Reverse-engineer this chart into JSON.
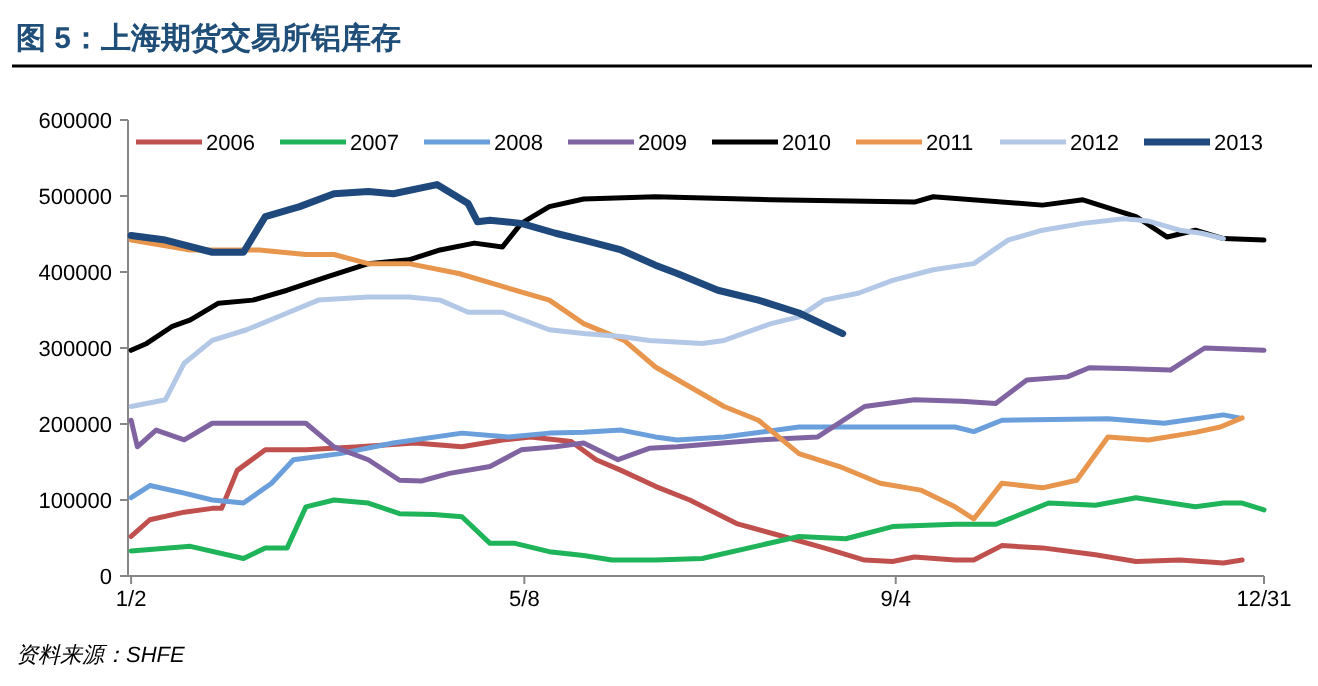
{
  "chart_data": {
    "type": "line",
    "title": "图 5：上海期货交易所铝库存",
    "annotations": [
      "资料来源：SHFE"
    ],
    "xlim": [
      "--01-01",
      "--12-31"
    ],
    "ylim": [
      0,
      600000
    ],
    "xticks": [
      {
        "value": "--01-02",
        "label": "1/2"
      },
      {
        "value": "--05-08",
        "label": "5/8"
      },
      {
        "value": "--09-04",
        "label": "9/4"
      },
      {
        "value": "--12-31",
        "label": "12/31"
      }
    ],
    "yticks": [
      0,
      100000,
      200000,
      300000,
      400000,
      500000,
      600000
    ],
    "legend": "top",
    "series": [
      {
        "name": "2006",
        "color": "#c0504d",
        "x": [
          "--01-02",
          "--01-08",
          "--01-19",
          "--01-28",
          "--01-31",
          "--02-05",
          "--02-14",
          "--02-27",
          "--03-16",
          "--04-03",
          "--04-18",
          "--05-01",
          "--05-10",
          "--05-23",
          "--05-31",
          "--06-08",
          "--06-19",
          "--06-30",
          "--07-15",
          "--07-30",
          "--08-12",
          "--08-25",
          "--09-03",
          "--09-10",
          "--09-23",
          "--09-29",
          "--10-08",
          "--10-21",
          "--11-07",
          "--11-20",
          "--12-04",
          "--12-18",
          "--12-24"
        ],
        "values": [
          52000,
          74000,
          84000,
          89000,
          89000,
          139000,
          166000,
          166000,
          170000,
          175000,
          170000,
          179000,
          183000,
          177000,
          153000,
          139000,
          118000,
          100000,
          69000,
          52000,
          37000,
          21000,
          19000,
          25000,
          21000,
          21000,
          40000,
          37000,
          28000,
          19000,
          21000,
          17000,
          21000
        ]
      },
      {
        "name": "2007",
        "color": "#1fb35a",
        "x": [
          "--01-02",
          "--01-21",
          "--02-07",
          "--02-14",
          "--02-21",
          "--02-27",
          "--03-08",
          "--03-19",
          "--03-29",
          "--04-09",
          "--04-18",
          "--04-27",
          "--05-05",
          "--05-16",
          "--05-27",
          "--06-05",
          "--06-19",
          "--07-04",
          "--08-04",
          "--08-19",
          "--09-03",
          "--09-23",
          "--10-06",
          "--10-23",
          "--11-07",
          "--11-20",
          "--12-09",
          "--12-18",
          "--12-24",
          "--12-31"
        ],
        "values": [
          33000,
          39000,
          23000,
          37000,
          37000,
          91000,
          100000,
          96000,
          82000,
          81000,
          78000,
          43000,
          43000,
          32000,
          27000,
          21000,
          21000,
          23000,
          52000,
          49000,
          65000,
          68000,
          68000,
          96000,
          93000,
          103000,
          91000,
          96000,
          96000,
          87000
        ]
      },
      {
        "name": "2008",
        "color": "#6a9fdc",
        "x": [
          "--01-02",
          "--01-08",
          "--01-19",
          "--01-28",
          "--02-07",
          "--02-16",
          "--02-23",
          "--03-10",
          "--03-27",
          "--04-18",
          "--05-03",
          "--05-16",
          "--05-27",
          "--06-08",
          "--06-19",
          "--06-26",
          "--07-11",
          "--08-04",
          "--09-23",
          "--09-29",
          "--10-08",
          "--11-11",
          "--11-29",
          "--12-18",
          "--12-23"
        ],
        "values": [
          103000,
          119000,
          109000,
          100000,
          96000,
          122000,
          153000,
          161000,
          175000,
          188000,
          183000,
          188000,
          189000,
          192000,
          183000,
          179000,
          183000,
          196000,
          196000,
          190000,
          205000,
          207000,
          201000,
          212000,
          208000
        ]
      },
      {
        "name": "2009",
        "color": "#8064a2",
        "x": [
          "--01-02",
          "--01-04",
          "--01-10",
          "--01-19",
          "--01-28",
          "--02-12",
          "--02-27",
          "--03-08",
          "--03-19",
          "--03-29",
          "--04-05",
          "--04-14",
          "--04-27",
          "--05-07",
          "--05-18",
          "--05-27",
          "--06-07",
          "--06-17",
          "--06-26",
          "--07-22",
          "--08-10",
          "--08-25",
          "--09-10",
          "--09-25",
          "--10-06",
          "--10-16",
          "--10-29",
          "--11-05",
          "--11-16",
          "--12-01",
          "--12-12",
          "--12-31"
        ],
        "values": [
          205000,
          170000,
          192000,
          179000,
          201000,
          201000,
          201000,
          170000,
          153000,
          126000,
          125000,
          135000,
          144000,
          166000,
          170000,
          175000,
          153000,
          168000,
          170000,
          179000,
          183000,
          223000,
          232000,
          230000,
          227000,
          258000,
          262000,
          274000,
          273000,
          271000,
          300000,
          297000
        ]
      },
      {
        "name": "2010",
        "color": "#000000",
        "x": [
          "--01-02",
          "--01-07",
          "--01-15",
          "--01-21",
          "--01-30",
          "--02-10",
          "--02-21",
          "--03-06",
          "--03-19",
          "--04-01",
          "--04-11",
          "--04-22",
          "--05-01",
          "--05-07",
          "--05-16",
          "--05-27",
          "--06-19",
          "--07-26",
          "--09-10",
          "--09-16",
          "--10-21",
          "--11-03",
          "--11-20",
          "--11-30",
          "--12-09",
          "--12-18",
          "--12-31"
        ],
        "values": [
          297000,
          306000,
          328000,
          337000,
          359000,
          363000,
          376000,
          394000,
          411000,
          416000,
          429000,
          438000,
          433000,
          464000,
          486000,
          496000,
          499000,
          495000,
          492000,
          499000,
          488000,
          495000,
          473000,
          446000,
          455000,
          444000,
          442000
        ]
      },
      {
        "name": "2011",
        "color": "#e8954d",
        "x": [
          "--01-02",
          "--01-21",
          "--02-12",
          "--02-27",
          "--03-08",
          "--03-19",
          "--04-01",
          "--04-17",
          "--05-01",
          "--05-16",
          "--05-27",
          "--06-09",
          "--06-19",
          "--06-30",
          "--07-11",
          "--07-22",
          "--08-04",
          "--08-17",
          "--08-30",
          "--09-12",
          "--09-23",
          "--09-29",
          "--10-08",
          "--10-21",
          "--11-01",
          "--11-11",
          "--11-24",
          "--12-09",
          "--12-17",
          "--12-24"
        ],
        "values": [
          442000,
          429000,
          429000,
          423000,
          423000,
          411000,
          411000,
          398000,
          381000,
          363000,
          332000,
          310000,
          275000,
          249000,
          223000,
          205000,
          161000,
          144000,
          122000,
          113000,
          91000,
          75000,
          122000,
          116000,
          126000,
          183000,
          179000,
          189000,
          196000,
          208000
        ]
      },
      {
        "name": "2012",
        "color": "#b3c8e6",
        "x": [
          "--01-02",
          "--01-13",
          "--01-19",
          "--01-28",
          "--02-08",
          "--02-21",
          "--03-03",
          "--03-19",
          "--04-01",
          "--04-11",
          "--04-20",
          "--05-01",
          "--05-16",
          "--05-27",
          "--06-08",
          "--06-17",
          "--07-04",
          "--07-11",
          "--07-26",
          "--08-04",
          "--08-12",
          "--08-23",
          "--09-03",
          "--09-16",
          "--09-29",
          "--10-10",
          "--10-21",
          "--11-03",
          "--11-16",
          "--11-24",
          "--12-04",
          "--12-11",
          "--12-18"
        ],
        "values": [
          223000,
          232000,
          280000,
          310000,
          324000,
          346000,
          363000,
          367000,
          367000,
          363000,
          347000,
          347000,
          324000,
          319000,
          315000,
          310000,
          306000,
          310000,
          332000,
          341000,
          363000,
          372000,
          389000,
          403000,
          411000,
          442000,
          455000,
          464000,
          470000,
          467000,
          455000,
          451000,
          444000
        ]
      },
      {
        "name": "2013",
        "color": "#1f497d",
        "x": [
          "--01-02",
          "--01-13",
          "--01-28",
          "--02-07",
          "--02-14",
          "--02-25",
          "--03-08",
          "--03-19",
          "--03-27",
          "--04-10",
          "--04-20",
          "--04-23",
          "--04-27",
          "--05-07",
          "--05-18",
          "--05-27",
          "--06-08",
          "--06-19",
          "--06-26",
          "--07-09",
          "--07-22",
          "--08-04",
          "--08-18"
        ],
        "values": [
          448000,
          442000,
          426000,
          426000,
          473000,
          486000,
          503000,
          506000,
          503000,
          515000,
          490000,
          466000,
          468000,
          464000,
          451000,
          442000,
          429000,
          409000,
          398000,
          376000,
          363000,
          346000,
          319000
        ]
      }
    ]
  }
}
